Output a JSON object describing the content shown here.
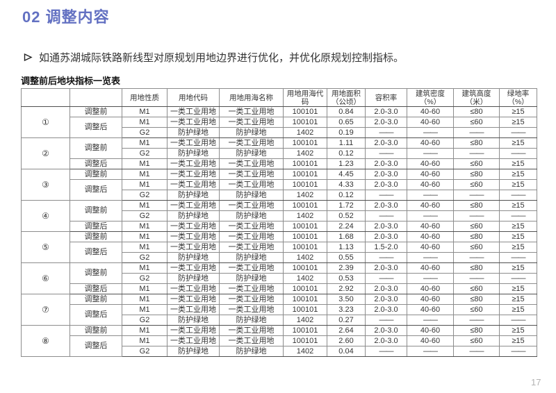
{
  "header": {
    "title": "02 调整内容"
  },
  "intro": {
    "text": "如通苏湖城际铁路新线型对原规划用地边界进行优化，并优化原规划控制指标。"
  },
  "table": {
    "caption": "调整前后地块指标一览表",
    "columns": [
      "",
      "",
      "用地性质",
      "用地代码",
      "用地用海名称",
      "用地用海代码",
      "用地面积\n（公顷）",
      "容积率",
      "建筑密度（%）",
      "建筑高度（米）",
      "绿地率\n（%）"
    ],
    "groups": [
      {
        "id": "①",
        "phases": [
          {
            "label": "调整前",
            "rows": [
              [
                "M1",
                "一类工业用地",
                "一类工业用地",
                "100101",
                "0.84",
                "2.0-3.0",
                "40-60",
                "≤80",
                "≥15"
              ]
            ]
          },
          {
            "label": "调整后",
            "rows": [
              [
                "M1",
                "一类工业用地",
                "一类工业用地",
                "100101",
                "0.65",
                "2.0-3.0",
                "40-60",
                "≤60",
                "≥15"
              ],
              [
                "G2",
                "防护绿地",
                "防护绿地",
                "1402",
                "0.19",
                "——",
                "——",
                "——",
                "——"
              ]
            ]
          }
        ]
      },
      {
        "id": "②",
        "phases": [
          {
            "label": "调整前",
            "rows": [
              [
                "M1",
                "一类工业用地",
                "一类工业用地",
                "100101",
                "1.11",
                "2.0-3.0",
                "40-60",
                "≤80",
                "≥15"
              ],
              [
                "G2",
                "防护绿地",
                "防护绿地",
                "1402",
                "0.12",
                "——",
                "——",
                "——",
                "——"
              ]
            ]
          },
          {
            "label": "调整后",
            "rows": [
              [
                "M1",
                "一类工业用地",
                "一类工业用地",
                "100101",
                "1.23",
                "2.0-3.0",
                "40-60",
                "≤60",
                "≥15"
              ]
            ]
          }
        ]
      },
      {
        "id": "③",
        "phases": [
          {
            "label": "调整前",
            "rows": [
              [
                "M1",
                "一类工业用地",
                "一类工业用地",
                "100101",
                "4.45",
                "2.0-3.0",
                "40-60",
                "≤80",
                "≥15"
              ]
            ]
          },
          {
            "label": "调整后",
            "rows": [
              [
                "M1",
                "一类工业用地",
                "一类工业用地",
                "100101",
                "4.33",
                "2.0-3.0",
                "40-60",
                "≤60",
                "≥15"
              ],
              [
                "G2",
                "防护绿地",
                "防护绿地",
                "1402",
                "0.12",
                "——",
                "——",
                "——",
                "——"
              ]
            ]
          }
        ]
      },
      {
        "id": "④",
        "phases": [
          {
            "label": "调整前",
            "rows": [
              [
                "M1",
                "一类工业用地",
                "一类工业用地",
                "100101",
                "1.72",
                "2.0-3.0",
                "40-60",
                "≤80",
                "≥15"
              ],
              [
                "G2",
                "防护绿地",
                "防护绿地",
                "1402",
                "0.52",
                "——",
                "——",
                "——",
                "——"
              ]
            ]
          },
          {
            "label": "调整后",
            "rows": [
              [
                "M1",
                "一类工业用地",
                "一类工业用地",
                "100101",
                "2.24",
                "2.0-3.0",
                "40-60",
                "≤60",
                "≥15"
              ]
            ]
          }
        ]
      },
      {
        "id": "⑤",
        "phases": [
          {
            "label": "调整前",
            "rows": [
              [
                "M1",
                "一类工业用地",
                "一类工业用地",
                "100101",
                "1.68",
                "2.0-3.0",
                "40-60",
                "≤80",
                "≥15"
              ]
            ]
          },
          {
            "label": "调整后",
            "rows": [
              [
                "M1",
                "一类工业用地",
                "一类工业用地",
                "100101",
                "1.13",
                "1.5-2.0",
                "40-60",
                "≤60",
                "≥15"
              ],
              [
                "G2",
                "防护绿地",
                "防护绿地",
                "1402",
                "0.55",
                "——",
                "——",
                "——",
                "——"
              ]
            ]
          }
        ]
      },
      {
        "id": "⑥",
        "phases": [
          {
            "label": "调整前",
            "rows": [
              [
                "M1",
                "一类工业用地",
                "一类工业用地",
                "100101",
                "2.39",
                "2.0-3.0",
                "40-60",
                "≤80",
                "≥15"
              ],
              [
                "G2",
                "防护绿地",
                "防护绿地",
                "1402",
                "0.53",
                "——",
                "——",
                "——",
                "——"
              ]
            ]
          },
          {
            "label": "调整后",
            "rows": [
              [
                "M1",
                "一类工业用地",
                "一类工业用地",
                "100101",
                "2.92",
                "2.0-3.0",
                "40-60",
                "≤60",
                "≥15"
              ]
            ]
          }
        ]
      },
      {
        "id": "⑦",
        "phases": [
          {
            "label": "调整前",
            "rows": [
              [
                "M1",
                "一类工业用地",
                "一类工业用地",
                "100101",
                "3.50",
                "2.0-3.0",
                "40-60",
                "≤80",
                "≥15"
              ]
            ]
          },
          {
            "label": "调整后",
            "rows": [
              [
                "M1",
                "一类工业用地",
                "一类工业用地",
                "100101",
                "3.23",
                "2.0-3.0",
                "40-60",
                "≤60",
                "≥15"
              ],
              [
                "G2",
                "防护绿地",
                "防护绿地",
                "1402",
                "0.27",
                "——",
                "——",
                "——",
                "——"
              ]
            ]
          }
        ]
      },
      {
        "id": "⑧",
        "phases": [
          {
            "label": "调整前",
            "rows": [
              [
                "M1",
                "一类工业用地",
                "一类工业用地",
                "100101",
                "2.64",
                "2.0-3.0",
                "40-60",
                "≤80",
                "≥15"
              ]
            ]
          },
          {
            "label": "调整后",
            "rows": [
              [
                "M1",
                "一类工业用地",
                "一类工业用地",
                "100101",
                "2.60",
                "2.0-3.0",
                "40-60",
                "≤60",
                "≥15"
              ],
              [
                "G2",
                "防护绿地",
                "防护绿地",
                "1402",
                "0.04",
                "——",
                "——",
                "——",
                "——"
              ]
            ]
          }
        ]
      }
    ]
  },
  "footer": {
    "page_number": "17"
  },
  "colors": {
    "accent": "#6371C2",
    "text": "#333333",
    "table_border": "#8c8c8c",
    "table_border_strong": "#4f4f4f",
    "page_number": "#b3b3b3"
  }
}
